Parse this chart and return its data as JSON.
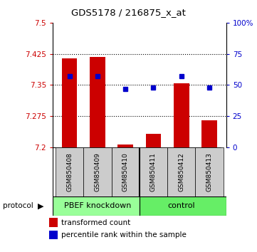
{
  "title": "GDS5178 / 216875_x_at",
  "samples": [
    "GSM850408",
    "GSM850409",
    "GSM850410",
    "GSM850411",
    "GSM850412",
    "GSM850413"
  ],
  "bar_values": [
    7.415,
    7.418,
    7.207,
    7.232,
    7.355,
    7.265
  ],
  "percentile_values": [
    57,
    57,
    47,
    48,
    57,
    48
  ],
  "bar_color": "#cc0000",
  "dot_color": "#0000cc",
  "ylim_left": [
    7.2,
    7.5
  ],
  "ylim_right": [
    0,
    100
  ],
  "yticks_left": [
    7.2,
    7.275,
    7.35,
    7.425,
    7.5
  ],
  "yticks_right": [
    0,
    25,
    50,
    75,
    100
  ],
  "ytick_labels_left": [
    "7.2",
    "7.275",
    "7.35",
    "7.425",
    "7.5"
  ],
  "ytick_labels_right": [
    "0",
    "25",
    "50",
    "75",
    "100%"
  ],
  "group1_label": "PBEF knockdown",
  "group2_label": "control",
  "protocol_label": "protocol",
  "legend1": "transformed count",
  "legend2": "percentile rank within the sample",
  "group1_color": "#99ff99",
  "group2_color": "#66ee66",
  "header_color": "#cccccc",
  "bar_base": 7.2,
  "grid_lines": [
    7.275,
    7.35,
    7.425
  ]
}
